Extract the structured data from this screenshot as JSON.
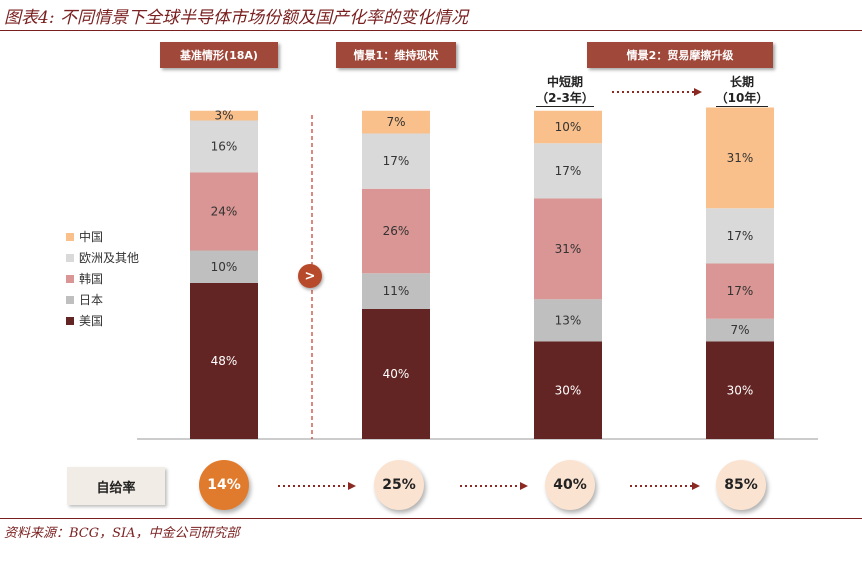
{
  "title": "图表4:  不同情景下全球半导体市场份额及国产化率的变化情况",
  "scenarios": {
    "base": "基准情形(18A)",
    "s1": "情景1：维持现状",
    "s2": "情景2：贸易摩擦升级"
  },
  "sub_labels": {
    "mid_term": "中短期",
    "mid_years": "（2-3年）",
    "long_term": "长期",
    "long_years": "（10年）"
  },
  "legend": [
    {
      "label": "中国",
      "color": "#f9c08c"
    },
    {
      "label": "欧洲及其他",
      "color": "#d9d9d9"
    },
    {
      "label": "韩国",
      "color": "#d99694"
    },
    {
      "label": "日本",
      "color": "#bfbfbf"
    },
    {
      "label": "美国",
      "color": "#632523"
    }
  ],
  "chart_data": {
    "type": "bar",
    "stacked": true,
    "categories": [
      "基准情形(18A)",
      "情景1：维持现状",
      "情景2：中短期（2-3年）",
      "情景2：长期（10年）"
    ],
    "series": [
      {
        "name": "美国",
        "values": [
          48,
          40,
          30,
          30
        ]
      },
      {
        "name": "日本",
        "values": [
          10,
          11,
          13,
          7
        ]
      },
      {
        "name": "韩国",
        "values": [
          24,
          26,
          31,
          17
        ]
      },
      {
        "name": "欧洲及其他",
        "values": [
          16,
          17,
          17,
          17
        ]
      },
      {
        "name": "中国",
        "values": [
          3,
          7,
          10,
          31
        ]
      }
    ],
    "labels": [
      [
        "48%",
        "10%",
        "24%",
        "16%",
        "3%"
      ],
      [
        "40%",
        "11%",
        "26%",
        "17%",
        "7%"
      ],
      [
        "30%",
        "13%",
        "31%",
        "17%",
        "10%"
      ],
      [
        "30%",
        "7%",
        "17%",
        "17%",
        "31%"
      ]
    ],
    "ylim": [
      0,
      100
    ]
  },
  "self_sufficiency": {
    "label": "自给率",
    "values": [
      "14%",
      "25%",
      "40%",
      "85%"
    ]
  },
  "divider_marker": ">",
  "source": "资料来源：BCG，SIA，中金公司研究部"
}
